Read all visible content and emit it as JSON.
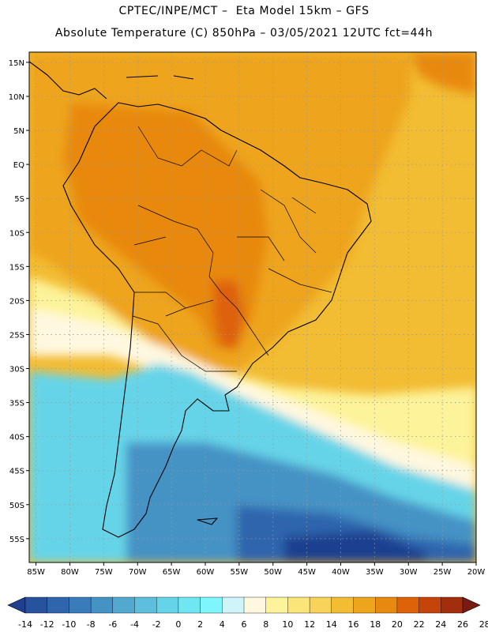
{
  "header": {
    "line1": "CPTEC/INPE/MCT –  Eta Model 15km – GFS",
    "line2": "Absolute Temperature (C) 850hPa – 03/05/2021 12UTC fct=44h"
  },
  "map": {
    "lat_labels": [
      "15N",
      "10N",
      "5N",
      "EQ",
      "5S",
      "10S",
      "15S",
      "20S",
      "25S",
      "30S",
      "35S",
      "40S",
      "45S",
      "50S",
      "55S"
    ],
    "lat_values": [
      15,
      10,
      5,
      0,
      -5,
      -10,
      -15,
      -20,
      -25,
      -30,
      -35,
      -40,
      -45,
      -50,
      -55
    ],
    "lon_labels": [
      "85W",
      "80W",
      "75W",
      "70W",
      "65W",
      "60W",
      "55W",
      "50W",
      "45W",
      "40W",
      "35W",
      "30W",
      "25W",
      "20W"
    ],
    "lon_values": [
      -85,
      -80,
      -75,
      -70,
      -65,
      -60,
      -55,
      -50,
      -45,
      -40,
      -35,
      -30,
      -25,
      -20
    ],
    "lat_range": [
      -58.5,
      16.5
    ],
    "lon_range": [
      -86,
      -20
    ]
  },
  "colorbar": {
    "tick_labels": [
      "-14",
      "-12",
      "-10",
      "-8",
      "-6",
      "-4",
      "-2",
      "0",
      "2",
      "4",
      "6",
      "8",
      "10",
      "12",
      "14",
      "16",
      "18",
      "20",
      "22",
      "24",
      "26",
      "28"
    ],
    "colors": [
      "#1f3f8f",
      "#27529e",
      "#2f65ad",
      "#3a7cbb",
      "#4592c5",
      "#52a8cf",
      "#5dbfdb",
      "#66d4e8",
      "#70e6f2",
      "#7ef6fb",
      "#cff5fb",
      "#fff8e0",
      "#fdf39a",
      "#fbe579",
      "#f7d35a",
      "#f2bc33",
      "#eea41c",
      "#e8890f",
      "#de6208",
      "#c4440a",
      "#a32e0e",
      "#7a1a10"
    ]
  },
  "colors": {
    "cold_deep": "#1f3f8f",
    "cold": "#3a7cbb",
    "cool": "#5dbfdb",
    "mild": "#fff8e0",
    "warm": "#f2bc33",
    "hot": "#e8890f",
    "hotter": "#de6208"
  }
}
